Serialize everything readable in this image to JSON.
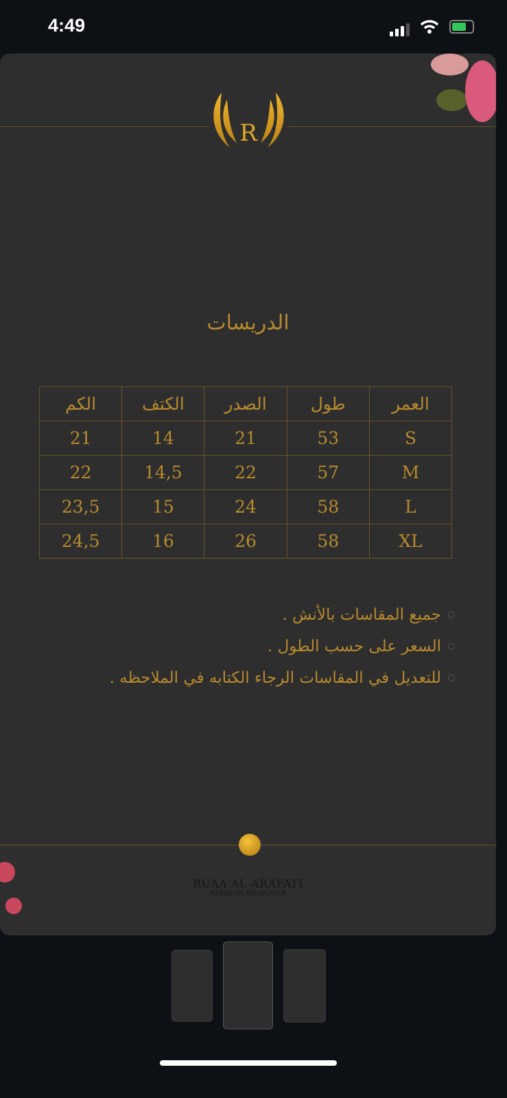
{
  "status_bar": {
    "time": "4:49"
  },
  "page": {
    "title": "الدريسات",
    "table": {
      "headers": [
        "العمر",
        "طول",
        "الصدر",
        "الكتف",
        "الكم"
      ],
      "rows": [
        [
          "S",
          "53",
          "21",
          "14",
          "21"
        ],
        [
          "M",
          "57",
          "22",
          "14,5",
          "22"
        ],
        [
          "L",
          "58",
          "24",
          "15",
          "23,5"
        ],
        [
          "XL",
          "58",
          "26",
          "16",
          "24,5"
        ]
      ]
    },
    "notes": [
      "جميع المقاسات بالأنش .",
      "السعر على حسب الطول .",
      "للتعديل في المقاسات الرجاء الكتابه في الملاحظه ."
    ],
    "brand": {
      "name": "RUAA AL-ARAFATI",
      "subtitle": "FASHION DESIGNER"
    },
    "logo_letter": "R"
  },
  "gallery": {
    "count": 3,
    "selected": 2
  },
  "colors": {
    "gold": "#b88a2e",
    "card": "#2e2e2e",
    "background": "#0d1015"
  }
}
